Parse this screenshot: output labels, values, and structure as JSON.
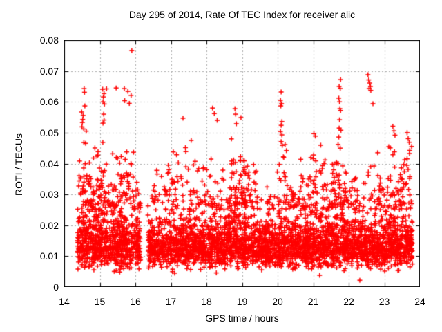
{
  "title": "Day 295 of 2014, Rate Of TEC Index for receiver alic",
  "chart_data": {
    "type": "scatter",
    "title": "Day 295 of 2014, Rate Of TEC Index for receiver alic",
    "xlabel": "GPS time / hours",
    "ylabel": "ROTI / TECUs",
    "xlim": [
      14,
      24
    ],
    "ylim": [
      0,
      0.08
    ],
    "xticks": [
      14,
      15,
      16,
      17,
      18,
      19,
      20,
      21,
      22,
      23,
      24
    ],
    "xtick_labels": [
      "14",
      "15",
      "16",
      "17",
      "18",
      "19",
      "20",
      "21",
      "22",
      "23",
      "24"
    ],
    "yticks": [
      0,
      0.01,
      0.02,
      0.03,
      0.04,
      0.05,
      0.06,
      0.07,
      0.08
    ],
    "ytick_labels": [
      "0",
      "0.01",
      "0.02",
      "0.03",
      "0.04",
      "0.05",
      "0.06",
      "0.07",
      "0.08"
    ],
    "grid": true,
    "grid_color": "#aaaaaa",
    "grid_dash": [
      2,
      3
    ],
    "axis_color": "#000000",
    "marker": {
      "shape": "plus",
      "color": "#ff0000",
      "size": 7
    },
    "data_extent": {
      "x_start": 14.37,
      "x_end": 23.79,
      "band_min": 0.0045,
      "max_point": [
        15.9,
        0.0766
      ]
    },
    "gaps": [
      [
        14.0,
        14.37
      ],
      [
        16.15,
        16.35
      ],
      [
        23.79,
        24.0
      ]
    ],
    "band_segments": [
      [
        14.37,
        16.15,
        430,
        0.0148,
        0.37
      ],
      [
        16.35,
        17.0,
        400,
        0.0132,
        0.3
      ],
      [
        17.0,
        18.0,
        420,
        0.0135,
        0.32
      ],
      [
        18.0,
        18.6,
        420,
        0.0138,
        0.32
      ],
      [
        18.6,
        19.25,
        430,
        0.0142,
        0.35
      ],
      [
        19.25,
        20.0,
        410,
        0.0132,
        0.31
      ],
      [
        20.0,
        21.0,
        420,
        0.0135,
        0.32
      ],
      [
        21.0,
        22.0,
        430,
        0.0138,
        0.33
      ],
      [
        22.0,
        23.0,
        420,
        0.0133,
        0.31
      ],
      [
        23.0,
        23.79,
        430,
        0.014,
        0.34
      ]
    ],
    "tail_clusters": [
      [
        14.37,
        15.0,
        60,
        0.025,
        0.05
      ],
      [
        15.0,
        15.95,
        70,
        0.025,
        0.05
      ],
      [
        15.95,
        16.15,
        8,
        0.025,
        0.032
      ],
      [
        16.35,
        16.75,
        12,
        0.025,
        0.038
      ],
      [
        16.75,
        17.05,
        18,
        0.025,
        0.042
      ],
      [
        17.05,
        17.7,
        30,
        0.025,
        0.048
      ],
      [
        17.7,
        18.7,
        45,
        0.025,
        0.042
      ],
      [
        18.7,
        19.1,
        55,
        0.026,
        0.048
      ],
      [
        19.1,
        19.45,
        25,
        0.025,
        0.045
      ],
      [
        19.45,
        19.95,
        12,
        0.025,
        0.034
      ],
      [
        19.95,
        20.25,
        20,
        0.025,
        0.05
      ],
      [
        20.25,
        20.65,
        25,
        0.025,
        0.035
      ],
      [
        20.65,
        21.35,
        55,
        0.025,
        0.048
      ],
      [
        21.35,
        21.65,
        25,
        0.025,
        0.044
      ],
      [
        21.65,
        21.95,
        30,
        0.026,
        0.046
      ],
      [
        21.95,
        22.45,
        20,
        0.025,
        0.038
      ],
      [
        22.45,
        22.95,
        28,
        0.025,
        0.046
      ],
      [
        22.95,
        23.45,
        30,
        0.025,
        0.05
      ],
      [
        23.45,
        23.79,
        35,
        0.025,
        0.05
      ]
    ],
    "outliers": [
      [
        14.56,
        0.0643
      ],
      [
        14.57,
        0.0631
      ],
      [
        14.58,
        0.0587
      ],
      [
        14.49,
        0.0567
      ],
      [
        14.53,
        0.0556
      ],
      [
        14.52,
        0.0543
      ],
      [
        14.51,
        0.0533
      ],
      [
        14.5,
        0.0519
      ],
      [
        14.55,
        0.0512
      ],
      [
        14.62,
        0.0505
      ],
      [
        15.08,
        0.0641
      ],
      [
        15.12,
        0.0627
      ],
      [
        15.1,
        0.0616
      ],
      [
        15.09,
        0.06
      ],
      [
        15.13,
        0.0593
      ],
      [
        15.11,
        0.056
      ],
      [
        15.12,
        0.0541
      ],
      [
        15.09,
        0.0531
      ],
      [
        15.19,
        0.0642
      ],
      [
        15.46,
        0.0645
      ],
      [
        15.69,
        0.0643
      ],
      [
        15.79,
        0.0634
      ],
      [
        15.88,
        0.0621
      ],
      [
        15.7,
        0.0604
      ],
      [
        15.83,
        0.0595
      ],
      [
        15.9,
        0.0766
      ],
      [
        16.6,
        0.0378
      ],
      [
        16.61,
        0.0366
      ],
      [
        17.34,
        0.0547
      ],
      [
        17.57,
        0.0475
      ],
      [
        18.17,
        0.058
      ],
      [
        18.22,
        0.0562
      ],
      [
        18.3,
        0.054
      ],
      [
        18.8,
        0.0578
      ],
      [
        18.82,
        0.056
      ],
      [
        18.84,
        0.0529
      ],
      [
        18.97,
        0.0549
      ],
      [
        20.1,
        0.0632
      ],
      [
        20.08,
        0.0605
      ],
      [
        20.11,
        0.0594
      ],
      [
        20.09,
        0.0587
      ],
      [
        20.12,
        0.0536
      ],
      [
        20.1,
        0.0524
      ],
      [
        20.08,
        0.0504
      ],
      [
        20.12,
        0.0493
      ],
      [
        20.1,
        0.0471
      ],
      [
        20.13,
        0.0459
      ],
      [
        21.02,
        0.0497
      ],
      [
        21.06,
        0.0489
      ],
      [
        21.77,
        0.0672
      ],
      [
        21.73,
        0.065
      ],
      [
        21.76,
        0.0643
      ],
      [
        21.72,
        0.0612
      ],
      [
        21.74,
        0.06
      ],
      [
        21.75,
        0.0578
      ],
      [
        21.77,
        0.0572
      ],
      [
        21.74,
        0.0542
      ],
      [
        21.73,
        0.0515
      ],
      [
        21.78,
        0.0508
      ],
      [
        21.72,
        0.0486
      ],
      [
        21.7,
        0.0462
      ],
      [
        21.76,
        0.045
      ],
      [
        22.54,
        0.0688
      ],
      [
        22.56,
        0.0671
      ],
      [
        22.59,
        0.0661
      ],
      [
        22.61,
        0.065
      ],
      [
        22.57,
        0.0643
      ],
      [
        22.62,
        0.0637
      ],
      [
        22.68,
        0.0594
      ],
      [
        23.24,
        0.0521
      ],
      [
        23.27,
        0.0506
      ],
      [
        23.3,
        0.0492
      ],
      [
        23.64,
        0.05
      ],
      [
        23.67,
        0.0481
      ],
      [
        23.7,
        0.0469
      ],
      [
        22.31,
        0.0022
      ],
      [
        21.18,
        0.0038
      ]
    ]
  }
}
